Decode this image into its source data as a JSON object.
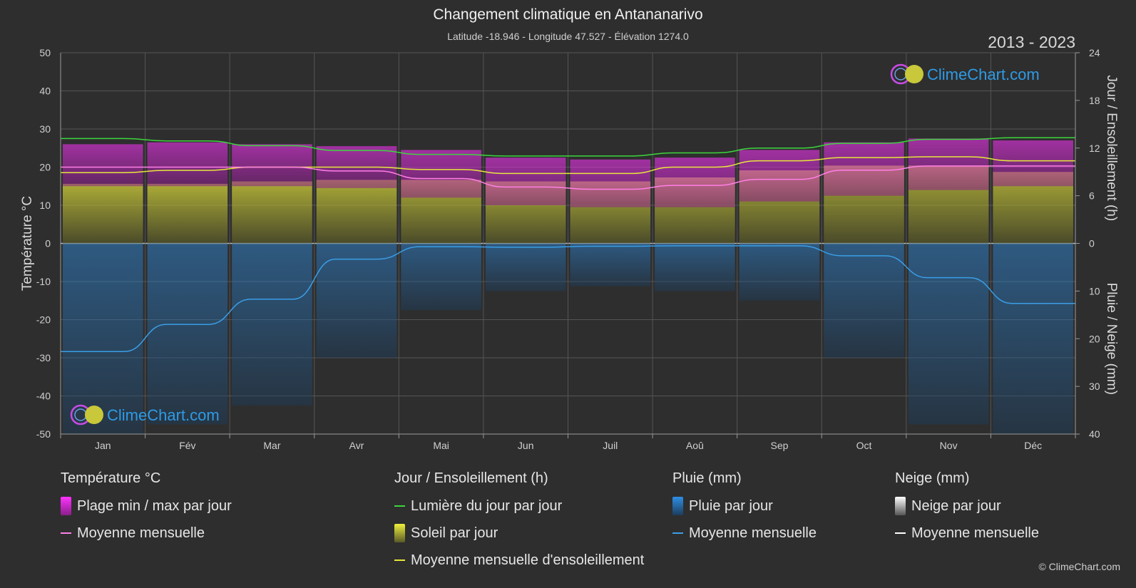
{
  "header": {
    "title": "Changement climatique en Antananarivo",
    "subtitle": "Latitude -18.946 - Longitude 47.527 - Élévation 1274.0",
    "years": "2013 - 2023"
  },
  "brand": {
    "name": "ClimeChart.com",
    "copyright": "© ClimeChart.com"
  },
  "colors": {
    "background": "#2e2e2e",
    "temp_band": "#d63fc8",
    "temp_mean": "#ff7fe6",
    "daylight": "#3cd63c",
    "sunshine_band": "#9c9c3a",
    "sunshine_mean": "#e6e63c",
    "rain_band": "#2f6a9e",
    "rain_mean": "#3a9ee6",
    "snow_mean": "#ffffff",
    "brand_text": "#2e9be6"
  },
  "chart_data": {
    "type": "area",
    "title": "Changement climatique en Antananarivo",
    "x": {
      "categories": [
        "Jan",
        "Fév",
        "Mar",
        "Avr",
        "Mai",
        "Jun",
        "Juil",
        "Aoû",
        "Sep",
        "Oct",
        "Nov",
        "Déc"
      ]
    },
    "y_left": {
      "label": "Température °C",
      "lim": [
        -50,
        50
      ],
      "ticks": [
        "50",
        "40",
        "30",
        "20",
        "10",
        "0",
        "-10",
        "-20",
        "-30",
        "-40",
        "-50"
      ]
    },
    "y_right_top": {
      "label": "Jour / Ensoleillement (h)",
      "lim": [
        0,
        24
      ],
      "ticks": [
        "24",
        "18",
        "12",
        "6",
        "0"
      ]
    },
    "y_right_bottom": {
      "label": "Pluie / Neige (mm)",
      "lim": [
        0,
        40
      ],
      "ticks": [
        "0",
        "10",
        "20",
        "30",
        "40"
      ]
    },
    "grid": true,
    "series": [
      {
        "name": "Plage min / max par jour",
        "kind": "band",
        "axis": "temp",
        "min": [
          15,
          15,
          15,
          14.5,
          12,
          10,
          9.5,
          9.5,
          11,
          12.5,
          14,
          15
        ],
        "max": [
          26,
          26.5,
          26,
          25.5,
          24.5,
          22.5,
          22,
          22.5,
          24.5,
          26.5,
          27.5,
          27
        ]
      },
      {
        "name": "Moyenne mensuelle",
        "kind": "line",
        "axis": "temp",
        "values": [
          20,
          20,
          20,
          19,
          17,
          14.8,
          14.2,
          15.2,
          16.8,
          19.2,
          20.3,
          20.3
        ]
      },
      {
        "name": "Lumière du jour par jour",
        "kind": "line",
        "axis": "hours",
        "values": [
          13.2,
          12.9,
          12.3,
          11.7,
          11.2,
          11.0,
          11.0,
          11.4,
          12.0,
          12.6,
          13.1,
          13.3
        ]
      },
      {
        "name": "Soleil par jour",
        "kind": "band",
        "axis": "hours",
        "values": [
          7.5,
          7.5,
          7.8,
          8.0,
          8.0,
          7.8,
          7.8,
          8.3,
          9.2,
          9.8,
          9.8,
          9.0
        ]
      },
      {
        "name": "Moyenne mensuelle d'ensoleillement",
        "kind": "line",
        "axis": "hours",
        "values": [
          8.9,
          9.2,
          9.6,
          9.6,
          9.3,
          8.8,
          8.8,
          9.6,
          10.4,
          10.8,
          10.9,
          10.4
        ]
      },
      {
        "name": "Pluie par jour",
        "kind": "band",
        "axis": "precip",
        "values": [
          40,
          38,
          34,
          24,
          14,
          10,
          9,
          10,
          12,
          24,
          38,
          40
        ]
      },
      {
        "name": "Moyenne mensuelle",
        "kind": "line",
        "axis": "precip",
        "values": [
          22.7,
          17.0,
          11.7,
          3.3,
          0.7,
          0.8,
          0.6,
          0.5,
          0.5,
          2.6,
          7.2,
          12.6
        ]
      },
      {
        "name": "Moyenne mensuelle",
        "kind": "line",
        "axis": "precip",
        "snow": true,
        "values": [
          0,
          0,
          0,
          0,
          0,
          0,
          0,
          0,
          0,
          0,
          0,
          0
        ]
      }
    ]
  },
  "legend": {
    "temperature": {
      "heading": "Température °C",
      "items": [
        "Plage min / max par jour",
        "Moyenne mensuelle"
      ]
    },
    "sun": {
      "heading": "Jour / Ensoleillement (h)",
      "items": [
        "Lumière du jour par jour",
        "Soleil par jour",
        "Moyenne mensuelle d'ensoleillement"
      ]
    },
    "rain": {
      "heading": "Pluie (mm)",
      "items": [
        "Pluie par jour",
        "Moyenne mensuelle"
      ]
    },
    "snow": {
      "heading": "Neige (mm)",
      "items": [
        "Neige par jour",
        "Moyenne mensuelle"
      ]
    }
  }
}
